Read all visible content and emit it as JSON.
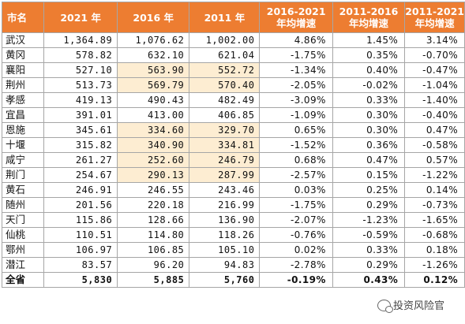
{
  "table": {
    "headers": [
      "市名",
      "2021 年",
      "2016 年",
      "2011 年",
      "2016-2021\n年均增速",
      "2011-2016\n年均增速",
      "2011-2021\n年均增速"
    ],
    "highlight_color": "#fdedd2",
    "header_color": "#ed7d31",
    "rows": [
      {
        "city": "武汉",
        "y2021": "1,364.89",
        "y2016": "1,076.62",
        "y2011": "1,002.00",
        "g1621": "4.86%",
        "g1116": "1.45%",
        "g1121": "3.14%",
        "hl": false
      },
      {
        "city": "黄冈",
        "y2021": "578.82",
        "y2016": "632.10",
        "y2011": "621.04",
        "g1621": "-1.75%",
        "g1116": "0.35%",
        "g1121": "-0.70%",
        "hl": false
      },
      {
        "city": "襄阳",
        "y2021": "527.10",
        "y2016": "563.90",
        "y2011": "552.72",
        "g1621": "-1.34%",
        "g1116": "0.40%",
        "g1121": "-0.47%",
        "hl": true
      },
      {
        "city": "荆州",
        "y2021": "513.73",
        "y2016": "569.79",
        "y2011": "570.40",
        "g1621": "-2.05%",
        "g1116": "-0.02%",
        "g1121": "-1.04%",
        "hl": true
      },
      {
        "city": "孝感",
        "y2021": "419.13",
        "y2016": "490.43",
        "y2011": "482.49",
        "g1621": "-3.09%",
        "g1116": "0.33%",
        "g1121": "-1.40%",
        "hl": false
      },
      {
        "city": "宜昌",
        "y2021": "391.01",
        "y2016": "413.00",
        "y2011": "406.85",
        "g1621": "-1.09%",
        "g1116": "0.30%",
        "g1121": "-0.40%",
        "hl": false
      },
      {
        "city": "恩施",
        "y2021": "345.61",
        "y2016": "334.60",
        "y2011": "329.70",
        "g1621": "0.65%",
        "g1116": "0.30%",
        "g1121": "0.47%",
        "hl": true
      },
      {
        "city": "十堰",
        "y2021": "315.82",
        "y2016": "340.90",
        "y2011": "334.81",
        "g1621": "-1.52%",
        "g1116": "0.36%",
        "g1121": "-0.58%",
        "hl": true
      },
      {
        "city": "咸宁",
        "y2021": "261.27",
        "y2016": "252.60",
        "y2011": "246.79",
        "g1621": "0.68%",
        "g1116": "0.47%",
        "g1121": "0.57%",
        "hl": true
      },
      {
        "city": "荆门",
        "y2021": "254.67",
        "y2016": "290.13",
        "y2011": "287.99",
        "g1621": "-2.57%",
        "g1116": "0.15%",
        "g1121": "-1.22%",
        "hl": true
      },
      {
        "city": "黄石",
        "y2021": "246.91",
        "y2016": "246.55",
        "y2011": "243.46",
        "g1621": "0.03%",
        "g1116": "0.25%",
        "g1121": "0.14%",
        "hl": false
      },
      {
        "city": "随州",
        "y2021": "201.56",
        "y2016": "220.18",
        "y2011": "216.99",
        "g1621": "-1.75%",
        "g1116": "0.29%",
        "g1121": "-0.73%",
        "hl": false
      },
      {
        "city": "天门",
        "y2021": "115.86",
        "y2016": "128.66",
        "y2011": "136.90",
        "g1621": "-2.07%",
        "g1116": "-1.23%",
        "g1121": "-1.65%",
        "hl": false
      },
      {
        "city": "仙桃",
        "y2021": "110.51",
        "y2016": "114.80",
        "y2011": "118.26",
        "g1621": "-0.76%",
        "g1116": "-0.59%",
        "g1121": "-0.68%",
        "hl": false
      },
      {
        "city": "鄂州",
        "y2021": "106.97",
        "y2016": "106.85",
        "y2011": "105.10",
        "g1621": "0.02%",
        "g1116": "0.33%",
        "g1121": "0.18%",
        "hl": false
      },
      {
        "city": "潜江",
        "y2021": "83.57",
        "y2016": "96.20",
        "y2011": "94.83",
        "g1621": "-2.78%",
        "g1116": "0.29%",
        "g1121": "-1.26%",
        "hl": false
      }
    ],
    "total": {
      "city": "全省",
      "y2021": "5,830",
      "y2016": "5,885",
      "y2011": "5,760",
      "g1621": "-0.19%",
      "g1116": "0.43%",
      "g1121": "0.12%"
    }
  },
  "watermark": {
    "text": "投资风险官",
    "icon": "wechat-icon"
  }
}
